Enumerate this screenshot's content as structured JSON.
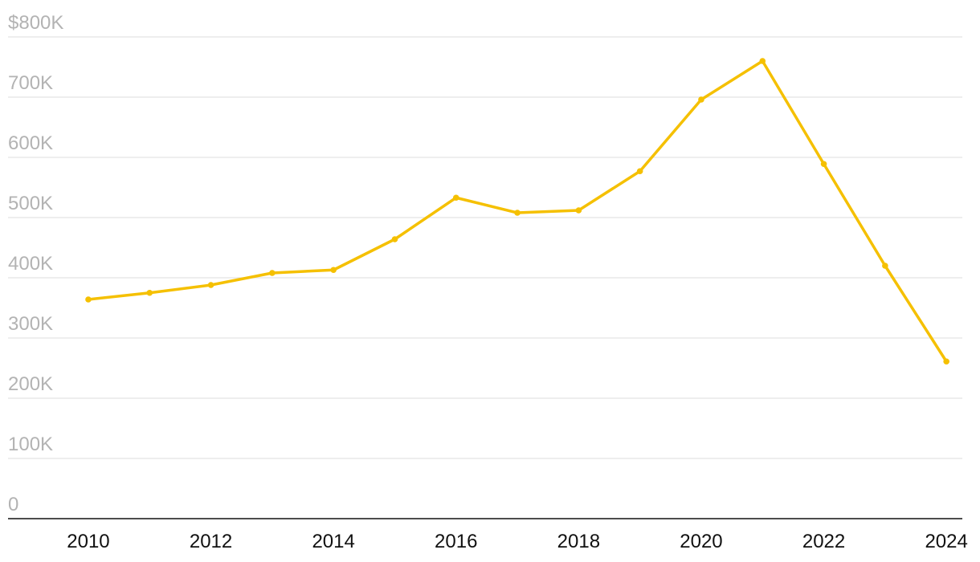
{
  "chart_data": {
    "type": "line",
    "x": [
      2010,
      2011,
      2012,
      2013,
      2014,
      2015,
      2016,
      2017,
      2018,
      2019,
      2020,
      2021,
      2022,
      2023,
      2024
    ],
    "values": [
      364000,
      375000,
      388000,
      408000,
      413000,
      464000,
      533000,
      508000,
      512000,
      577000,
      696000,
      760000,
      589000,
      420000,
      261000
    ],
    "color": "#f5c000",
    "xlim": [
      2008.69,
      2024.26
    ],
    "xticks": [
      2010,
      2012,
      2014,
      2016,
      2018,
      2020,
      2022,
      2024
    ],
    "ylim": [
      0,
      800000
    ],
    "yticks": [
      0,
      {
        "value": 100000,
        "label": "100K"
      },
      {
        "value": 200000,
        "label": "200K"
      },
      {
        "value": 300000,
        "label": "300K"
      },
      {
        "value": 400000,
        "label": "400K"
      },
      {
        "value": 500000,
        "label": "500K"
      },
      {
        "value": 600000,
        "label": "600K"
      },
      {
        "value": 700000,
        "label": "700K"
      },
      {
        "value": 800000,
        "label": "$800K"
      }
    ],
    "grid": true
  }
}
